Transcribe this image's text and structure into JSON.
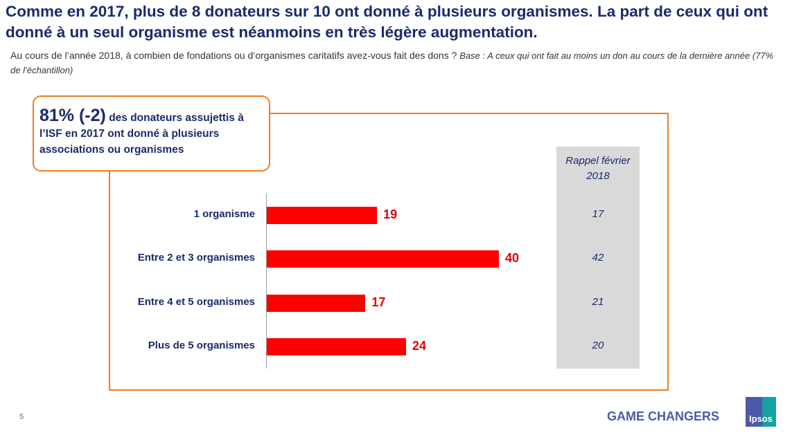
{
  "title": "Comme en 2017, plus de 8 donateurs sur 10 ont donné à plusieurs organismes. La part de ceux qui ont donné à un seul organisme est néanmoins en très légère augmentation.",
  "subtitle": {
    "question": "Au cours de l’année 2018, à combien de fondations ou d’organismes caritatifs avez-vous fait des dons ?",
    "base": "Base : A ceux qui ont fait au moins un don au cours de la dernière année (77% de l’échantillon)"
  },
  "callout": {
    "highlight": "81% (-2)",
    "text": "des donateurs assujettis à l’ISF en 2017 ont donné à plusieurs associations ou organismes"
  },
  "chart_data": {
    "type": "bar",
    "orientation": "horizontal",
    "categories": [
      "1 organisme",
      "Entre 2 et 3 organismes",
      "Entre 4 et 5 organismes",
      "Plus de 5 organismes"
    ],
    "values": [
      19,
      40,
      17,
      24
    ],
    "bar_color": "#ff0000",
    "comparison": {
      "label": "Rappel février 2018",
      "values": [
        17,
        42,
        21,
        20
      ]
    }
  },
  "footer": {
    "page": "5",
    "brand": "GAME CHANGERS",
    "logo": "Ipsos"
  }
}
